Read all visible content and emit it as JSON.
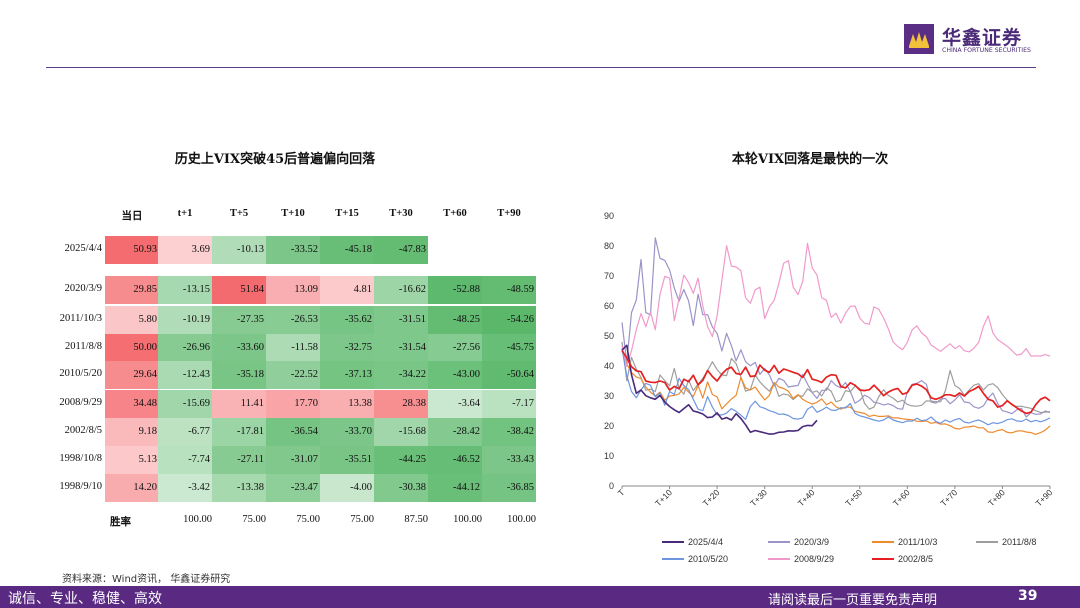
{
  "brand": {
    "name_cn": "华鑫证券",
    "name_en": "CHINA FORTUNE SECURITIES",
    "logo_icon": "purple-square-logo-icon"
  },
  "left_chart_title": "历史上VIX突破45后普遍偏向回落",
  "right_chart_title": "本轮VIX回落是最快的一次",
  "source_note": "资料来源：Wind资讯， 华鑫证券研究",
  "footer": {
    "slogan": "诚信、专业、稳健、高效",
    "disclaimer": "请阅读最后一页重要免责声明",
    "page": "39"
  },
  "chart_data": [
    {
      "type": "table",
      "title": "历史上VIX突破45后普遍偏向回落",
      "columns": [
        "当日",
        "t+1",
        "T+5",
        "T+10",
        "T+15",
        "T+30",
        "T+60",
        "T+90"
      ],
      "rows": [
        {
          "label": "2025/4/4",
          "values": [
            "50.93",
            "3.69",
            "-10.13",
            "-33.52",
            "-45.18",
            "-47.83",
            "",
            ""
          ]
        },
        {
          "label": "2020/3/9",
          "values": [
            "29.85",
            "-13.15",
            "51.84",
            "13.09",
            "4.81",
            "-16.62",
            "-52.88",
            "-48.59"
          ]
        },
        {
          "label": "2011/10/3",
          "values": [
            "5.80",
            "-10.19",
            "-27.35",
            "-26.53",
            "-35.62",
            "-31.51",
            "-48.25",
            "-54.26"
          ]
        },
        {
          "label": "2011/8/8",
          "values": [
            "50.00",
            "-26.96",
            "-33.60",
            "-11.58",
            "-32.75",
            "-31.54",
            "-27.56",
            "-45.75"
          ]
        },
        {
          "label": "2010/5/20",
          "values": [
            "29.64",
            "-12.43",
            "-35.18",
            "-22.52",
            "-37.13",
            "-34.22",
            "-43.00",
            "-50.64"
          ]
        },
        {
          "label": "2008/9/29",
          "values": [
            "34.48",
            "-15.69",
            "11.41",
            "17.70",
            "13.38",
            "28.38",
            "-3.64",
            "-7.17"
          ]
        },
        {
          "label": "2002/8/5",
          "values": [
            "9.18",
            "-6.77",
            "-17.81",
            "-36.54",
            "-33.70",
            "-15.68",
            "-28.42",
            "-38.42"
          ]
        },
        {
          "label": "1998/10/8",
          "values": [
            "5.13",
            "-7.74",
            "-27.11",
            "-31.07",
            "-35.51",
            "-44.25",
            "-46.52",
            "-33.43"
          ]
        },
        {
          "label": "1998/9/10",
          "values": [
            "14.20",
            "-3.42",
            "-13.38",
            "-23.47",
            "-4.00",
            "-30.38",
            "-44.12",
            "-36.85"
          ]
        }
      ],
      "win_rate_label": "胜率",
      "win_rate": [
        "",
        "100.00",
        "75.00",
        "75.00",
        "75.00",
        "87.50",
        "100.00",
        "100.00"
      ],
      "colors": {
        "positive_strong": "#f46b6f",
        "positive_light": "#fde3e3",
        "negative_light": "#e8f5ea",
        "negative_strong": "#5ab86a"
      }
    },
    {
      "type": "line",
      "title": "本轮VIX回落是最快的一次",
      "xlabel": "",
      "ylabel": "",
      "ylim": [
        0,
        90
      ],
      "yticks": [
        0,
        10,
        20,
        30,
        40,
        50,
        60,
        70,
        80,
        90
      ],
      "xlim": [
        0,
        90
      ],
      "xticks": [
        "T",
        "T+10",
        "T+20",
        "T+30",
        "T+40",
        "T+50",
        "T+60",
        "T+70",
        "T+80",
        "T+90"
      ],
      "xtick_positions": [
        0,
        10,
        20,
        30,
        40,
        50,
        60,
        70,
        80,
        90
      ],
      "legend_position": "bottom",
      "series": [
        {
          "name": "2025/4/4",
          "color": "#4a2a7a",
          "width": 1.6,
          "values": [
            45.3,
            46.9,
            37.1,
            30.9,
            32.0,
            30.1,
            29.4,
            28.9,
            30.2,
            28.0,
            26.5,
            25.4,
            24.5,
            25.8,
            27.1,
            25.0,
            24.6,
            24.0,
            22.8,
            23.0,
            24.4,
            22.3,
            22.8,
            22.0,
            24.1,
            22.5,
            20.4,
            17.9,
            18.5,
            18.1,
            17.7,
            17.3,
            17.4,
            17.9,
            18.0,
            18.4,
            18.3,
            18.5,
            19.8,
            20.2,
            20.1,
            21.9
          ]
        },
        {
          "name": "2020/3/9",
          "color": "#9b93c9",
          "width": 1.2,
          "values": [
            54.5,
            41.1,
            57.8,
            62.0,
            75.5,
            57.8,
            57.1,
            82.7,
            75.9,
            75.2,
            72.0,
            66.0,
            61.6,
            65.5,
            61.7,
            53.5,
            63.9,
            57.1,
            57.1,
            53.0,
            50.9,
            45.0,
            50.9,
            46.8,
            41.7,
            45.4,
            41.4,
            40.1,
            41.2,
            37.2,
            39.2,
            37.0,
            33.3,
            35.9,
            35.2,
            33.0,
            33.3,
            33.5,
            37.2,
            34.0,
            31.1,
            29.2,
            31.9,
            31.9,
            35.1,
            33.5,
            32.7,
            34.5,
            31.5,
            27.6,
            28.6,
            30.3,
            29.5,
            27.9,
            27.6,
            27.0,
            27.4,
            26.8,
            25.8,
            25.6,
            31.4,
            33.9,
            34.2,
            35.1,
            33.9,
            28.0,
            27.6,
            28.9,
            29.2,
            27.4,
            28.7,
            30.4,
            28.0,
            27.8,
            26.4,
            25.9,
            26.7,
            29.3,
            31.0,
            27.5,
            25.1,
            24.7,
            24.1,
            25.4,
            25.9,
            23.0,
            24.5,
            23.9,
            24.0,
            25.0,
            24.5
          ]
        },
        {
          "name": "2011/10/3",
          "color": "#ef8a2e",
          "width": 1.2,
          "values": [
            45.5,
            40.8,
            37.8,
            36.3,
            35.8,
            33.0,
            31.3,
            30.0,
            31.3,
            28.6,
            30.0,
            30.2,
            30.7,
            32.9,
            31.3,
            29.8,
            33.5,
            29.3,
            34.7,
            30.5,
            29.7,
            25.7,
            27.4,
            29.0,
            30.2,
            36.2,
            32.7,
            32.0,
            33.0,
            30.8,
            28.7,
            30.2,
            34.5,
            33.0,
            32.5,
            31.6,
            29.2,
            30.5,
            28.9,
            28.0,
            27.3,
            27.9,
            29.0,
            27.1,
            28.0,
            26.4,
            25.6,
            26.3,
            26.3,
            24.9,
            24.5,
            24.2,
            23.2,
            23.6,
            23.2,
            23.2,
            23.4,
            22.7,
            22.7,
            22.4,
            22.2,
            22.1,
            21.6,
            21.5,
            21.7,
            20.9,
            21.2,
            20.6,
            20.7,
            20.1,
            19.2,
            19.0,
            19.6,
            19.7,
            20.0,
            19.4,
            19.4,
            18.0,
            17.9,
            18.5,
            18.8,
            17.9,
            17.7,
            18.3,
            18.4,
            18.0,
            17.8,
            17.2,
            17.8,
            18.6,
            20.0
          ]
        },
        {
          "name": "2011/8/8",
          "color": "#9d9d9d",
          "width": 1.2,
          "values": [
            48.0,
            35.1,
            42.9,
            39.0,
            36.2,
            31.9,
            32.3,
            31.5,
            37.0,
            35.1,
            33.4,
            39.2,
            32.5,
            30.6,
            35.3,
            31.8,
            33.9,
            35.9,
            38.5,
            41.4,
            38.8,
            37.0,
            36.8,
            42.5,
            40.8,
            36.3,
            31.6,
            32.2,
            37.0,
            34.7,
            33.0,
            31.6,
            34.4,
            29.9,
            30.7,
            30.3,
            28.8,
            30.2,
            29.9,
            32.4,
            31.2,
            31.7,
            30.0,
            32.7,
            31.6,
            28.1,
            28.6,
            31.8,
            31.4,
            33.3,
            32.5,
            27.6,
            25.6,
            26.3,
            29.8,
            32.1,
            30.2,
            29.3,
            28.0,
            28.6,
            27.2,
            26.7,
            26.6,
            26.9,
            28.4,
            28.3,
            28.1,
            28.1,
            31.8,
            38.5,
            33.5,
            32.5,
            30.2,
            32.0,
            33.6,
            34.1,
            32.0,
            33.7,
            34.1,
            32.8,
            30.5,
            28.6,
            27.0,
            26.5,
            26.6,
            26.2,
            25.9,
            25.1,
            24.5,
            24.6,
            24.8
          ]
        },
        {
          "name": "2010/5/20",
          "color": "#6e96e0",
          "width": 1.2,
          "values": [
            45.8,
            36.7,
            31.5,
            29.4,
            32.0,
            34.2,
            33.6,
            29.7,
            31.0,
            26.9,
            31.5,
            30.5,
            35.9,
            33.5,
            32.1,
            28.9,
            25.6,
            25.1,
            29.8,
            26.3,
            23.7,
            23.7,
            24.3,
            25.8,
            24.9,
            23.6,
            22.2,
            26.5,
            28.3,
            26.4,
            25.9,
            25.1,
            24.6,
            23.9,
            24.0,
            23.5,
            22.5,
            22.3,
            22.7,
            25.6,
            26.6,
            24.6,
            25.3,
            26.3,
            25.3,
            25.2,
            26.1,
            26.0,
            27.5,
            24.2,
            23.4,
            23.0,
            22.5,
            22.0,
            21.6,
            22.0,
            23.0,
            22.0,
            21.5,
            21.1,
            21.7,
            21.6,
            22.6,
            21.8,
            22.0,
            23.0,
            21.5,
            20.9,
            22.0,
            21.3,
            22.1,
            22.5,
            21.3,
            21.0,
            21.6,
            22.0,
            21.3,
            20.4,
            21.1,
            20.8,
            21.3,
            22.1,
            22.4,
            21.7,
            21.5,
            22.3,
            21.4,
            21.9,
            21.4,
            21.9,
            22.7
          ]
        },
        {
          "name": "2008/9/29",
          "color": "#f09acb",
          "width": 1.2,
          "values": [
            46.7,
            39.8,
            45.1,
            52.1,
            57.5,
            53.1,
            58.0,
            52.1,
            63.9,
            69.9,
            69.3,
            55.1,
            62.6,
            70.3,
            67.8,
            64.2,
            69.3,
            60.0,
            53.1,
            49.8,
            56.7,
            68.6,
            80.1,
            73.3,
            73.0,
            71.8,
            62.7,
            60.9,
            65.4,
            66.3,
            55.8,
            59.7,
            61.9,
            67.6,
            74.3,
            75.1,
            66.3,
            63.8,
            68.2,
            80.9,
            72.7,
            70.3,
            62.8,
            61.9,
            56.2,
            57.6,
            54.3,
            57.6,
            59.9,
            60.0,
            56.0,
            54.3,
            53.9,
            59.7,
            58.9,
            56.0,
            52.4,
            48.0,
            46.5,
            45.4,
            47.9,
            52.0,
            53.4,
            51.0,
            49.8,
            47.0,
            45.9,
            44.9,
            46.2,
            47.4,
            45.8,
            46.8,
            45.1,
            44.7,
            45.9,
            47.9,
            53.2,
            56.7,
            51.0,
            48.8,
            47.7,
            46.6,
            45.1,
            43.6,
            44.0,
            45.8,
            43.3,
            43.4,
            43.3,
            43.8,
            43.3
          ]
        },
        {
          "name": "2002/8/5",
          "color": "#e62020",
          "width": 1.7,
          "values": [
            45.1,
            42.7,
            39.8,
            38.4,
            38.1,
            35.0,
            34.6,
            34.5,
            35.0,
            34.5,
            32.0,
            33.2,
            32.4,
            35.6,
            34.8,
            36.9,
            33.7,
            35.2,
            38.5,
            36.5,
            35.0,
            37.3,
            38.9,
            39.6,
            37.5,
            37.2,
            39.6,
            36.5,
            36.7,
            40.3,
            38.6,
            37.9,
            40.2,
            37.6,
            39.0,
            38.5,
            37.9,
            37.4,
            36.2,
            38.8,
            35.6,
            35.2,
            34.5,
            36.3,
            37.1,
            36.9,
            33.2,
            32.7,
            34.4,
            33.6,
            32.0,
            31.8,
            32.1,
            33.6,
            32.0,
            30.1,
            31.3,
            32.1,
            32.5,
            30.6,
            31.1,
            33.6,
            34.0,
            33.3,
            32.1,
            29.4,
            28.9,
            29.5,
            30.4,
            30.4,
            29.9,
            31.0,
            30.0,
            31.5,
            32.2,
            33.2,
            30.9,
            28.9,
            28.4,
            26.3,
            26.8,
            28.4,
            27.2,
            26.1,
            25.0,
            24.2,
            24.6,
            27.1,
            28.9,
            29.6,
            28.4
          ]
        }
      ]
    }
  ]
}
